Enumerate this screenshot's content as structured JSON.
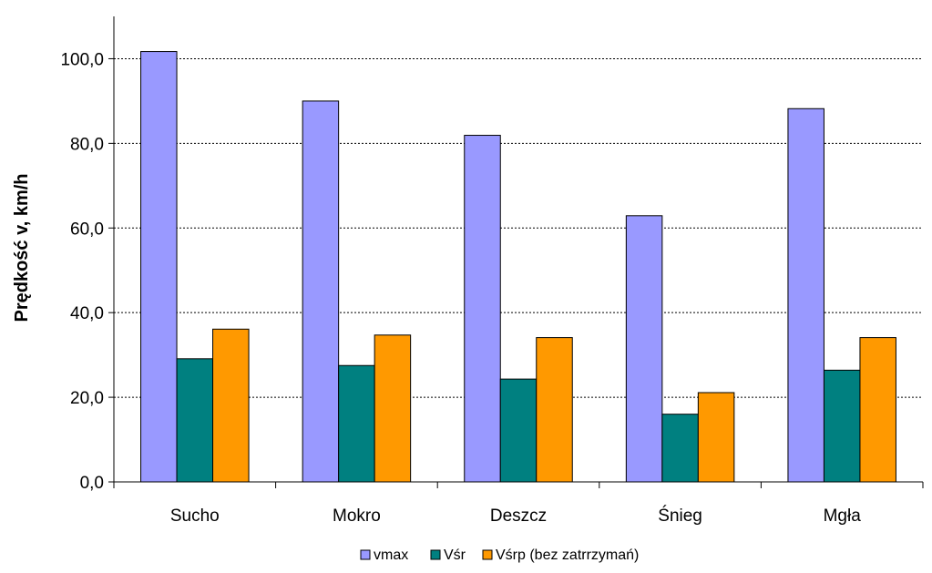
{
  "chart_data": {
    "type": "bar",
    "ylabel": "Prędkość v, km/h",
    "xlabel": "",
    "categories": [
      "Sucho",
      "Mokro",
      "Deszcz",
      "Śnieg",
      "Mgła"
    ],
    "series": [
      {
        "name": "vmax",
        "color": "#9999ff",
        "values": [
          101.7,
          90.0,
          81.9,
          62.9,
          88.2
        ]
      },
      {
        "name": "Vśr",
        "color": "#008080",
        "values": [
          29.1,
          27.5,
          24.3,
          16.0,
          26.4
        ]
      },
      {
        "name": "Vśrp (bez zatrrzymań)",
        "color": "#ff9900",
        "values": [
          36.1,
          34.7,
          34.1,
          21.1,
          34.1
        ]
      }
    ],
    "ylim": [
      0,
      110
    ],
    "yticks": [
      0,
      20,
      40,
      60,
      80,
      100
    ],
    "ytick_labels": [
      "0,0",
      "20,0",
      "40,0",
      "60,0",
      "80,0",
      "100,0"
    ],
    "grid": true,
    "grid_style": "dotted",
    "legend_position": "bottom"
  }
}
